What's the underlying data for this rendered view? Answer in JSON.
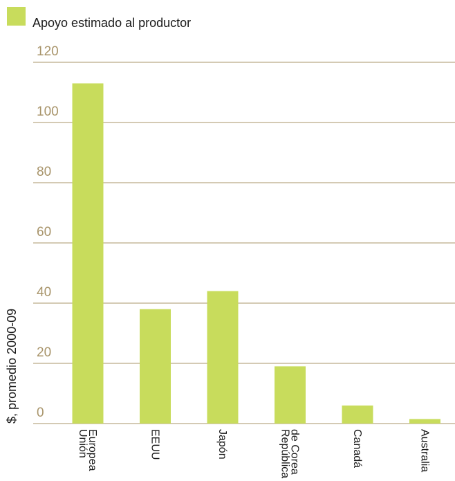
{
  "colors": {
    "bar": "#c8dc5c",
    "grid": "#a8946a",
    "tick_text": "#a8946a",
    "text": "#1a1a1a"
  },
  "chart_data": {
    "type": "bar",
    "legend": [
      "Apoyo estimado al productor"
    ],
    "legend_placement": "top-left",
    "ylabel": "$, promedio 2000-09",
    "xlabel": "",
    "ylim": [
      0,
      120
    ],
    "yticks": [
      0,
      20,
      40,
      60,
      80,
      100,
      120
    ],
    "grid": true,
    "categories": [
      [
        "Unión",
        "Europea"
      ],
      [
        "EEUU"
      ],
      [
        "Japón"
      ],
      [
        "República",
        "de Corea"
      ],
      [
        "Canadá"
      ],
      [
        "Australia"
      ]
    ],
    "series": [
      {
        "name": "Apoyo estimado al productor",
        "values": [
          113,
          38,
          44,
          19,
          6,
          1.5
        ]
      }
    ]
  }
}
